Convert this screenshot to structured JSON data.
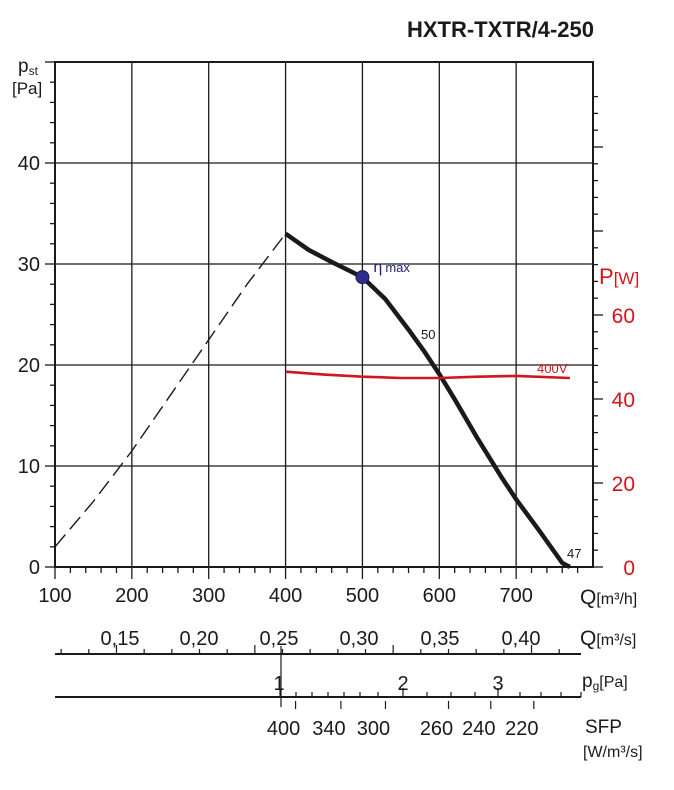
{
  "chart_data": {
    "type": "line",
    "title": "HXTR-TXTR/4-250",
    "ylabel_main": "p",
    "ylabel_sub": "st",
    "ylabel_unit": "[Pa]",
    "ylim": [
      0,
      50
    ],
    "yticks": [
      "0",
      "10",
      "20",
      "30",
      "40"
    ],
    "y2label_main": "P",
    "y2label_unit": "[W]",
    "y2lim": [
      0,
      120
    ],
    "y2ticks": [
      "0",
      "20",
      "40",
      "60"
    ],
    "xlim": [
      100,
      800
    ],
    "xticks": [
      "100",
      "200",
      "300",
      "400",
      "500",
      "600",
      "700"
    ],
    "xlabel_main": "Q",
    "xlabel_unit": "[m³/h]",
    "q_s_ticks": [
      {
        "value": 0.15,
        "label": "0,15"
      },
      {
        "value": 0.2,
        "label": "0,20"
      },
      {
        "value": 0.25,
        "label": "0,25"
      },
      {
        "value": 0.3,
        "label": "0,30"
      },
      {
        "value": 0.35,
        "label": "0,35"
      },
      {
        "value": 0.4,
        "label": "0,40"
      }
    ],
    "q_s_label_main": "Q",
    "q_s_label_unit": "[m³/s]",
    "pg_ticks": [
      {
        "value": 1,
        "label": "1"
      },
      {
        "value": 2,
        "label": "2"
      },
      {
        "value": 3,
        "label": "3"
      }
    ],
    "pg_label_main": "p",
    "pg_label_sub": "g",
    "pg_label_unit": "[Pa]",
    "sfp_ticks": [
      {
        "label": "400",
        "q": 413
      },
      {
        "label": "340",
        "q": 472
      },
      {
        "label": "300",
        "q": 530
      },
      {
        "label": "260",
        "q": 612
      },
      {
        "label": "240",
        "q": 667
      },
      {
        "label": "220",
        "q": 723
      }
    ],
    "sfp_label": "SFP",
    "sfp_unit": "[W/m³/s]",
    "series": [
      {
        "name": "fan-curve",
        "points": [
          [
            400,
            33
          ],
          [
            430,
            31.4
          ],
          [
            460,
            30.2
          ],
          [
            500,
            28.7
          ],
          [
            530,
            26.5
          ],
          [
            560,
            23.5
          ],
          [
            580,
            21.4
          ],
          [
            600,
            19.1
          ],
          [
            620,
            16.6
          ],
          [
            650,
            12.7
          ],
          [
            680,
            9.0
          ],
          [
            700,
            6.7
          ],
          [
            730,
            3.6
          ],
          [
            760,
            0.4
          ],
          [
            770,
            0
          ]
        ],
        "label": "50",
        "end_label": "47"
      },
      {
        "name": "system-curve-dashed",
        "points": [
          [
            100,
            2
          ],
          [
            150,
            6.5
          ],
          [
            200,
            11.5
          ],
          [
            250,
            17
          ],
          [
            300,
            22.5
          ],
          [
            350,
            28
          ],
          [
            400,
            33
          ]
        ]
      },
      {
        "name": "power-400V",
        "axis": "right",
        "color": "#d2141e",
        "points": [
          [
            400,
            46.5
          ],
          [
            450,
            45.8
          ],
          [
            500,
            45.3
          ],
          [
            550,
            45.0
          ],
          [
            600,
            45.0
          ],
          [
            650,
            45.3
          ],
          [
            700,
            45.5
          ],
          [
            770,
            45.0
          ]
        ],
        "label": "400V"
      }
    ],
    "annotations": [
      {
        "name": "eta-max",
        "q": 500,
        "p": 28.7,
        "label_symbol": "η",
        "label_text": "max"
      }
    ]
  }
}
